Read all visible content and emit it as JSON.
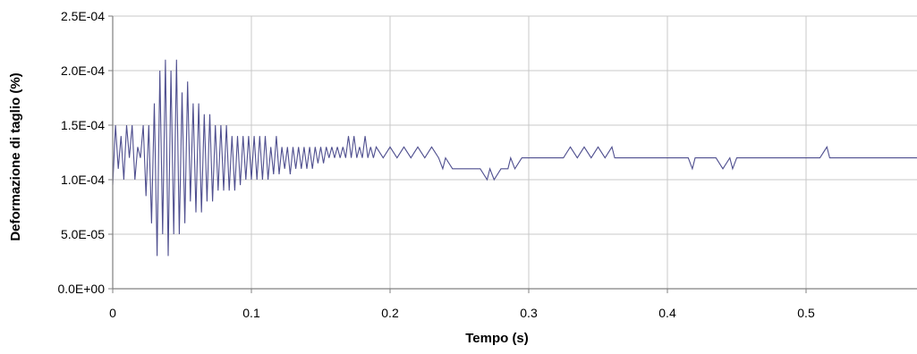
{
  "chart_data": {
    "type": "line",
    "title": "",
    "xlabel": "Tempo (s)",
    "ylabel": "Deformazione di taglio (%)",
    "xlim": [
      0,
      0.58
    ],
    "ylim": [
      0,
      0.00025
    ],
    "grid": true,
    "legend": "none",
    "x_ticks": [
      {
        "value": 0,
        "label": "0"
      },
      {
        "value": 0.1,
        "label": "0.1"
      },
      {
        "value": 0.2,
        "label": "0.2"
      },
      {
        "value": 0.3,
        "label": "0.3"
      },
      {
        "value": 0.4,
        "label": "0.4"
      },
      {
        "value": 0.5,
        "label": "0.5"
      }
    ],
    "y_ticks": [
      {
        "value": 0,
        "label": "0.0E+00"
      },
      {
        "value": 5e-05,
        "label": "5.0E-05"
      },
      {
        "value": 0.0001,
        "label": "1.0E-04"
      },
      {
        "value": 0.00015,
        "label": "1.5E-04"
      },
      {
        "value": 0.0002,
        "label": "2.0E-04"
      },
      {
        "value": 0.00025,
        "label": "2.5E-04"
      }
    ],
    "series_color": "#4f4f8f",
    "series": [
      {
        "x": [
          0.0,
          0.002,
          0.004,
          0.006,
          0.008,
          0.01,
          0.012,
          0.014,
          0.016,
          0.018,
          0.02,
          0.022,
          0.024,
          0.026,
          0.028,
          0.03,
          0.032,
          0.034,
          0.036,
          0.038,
          0.04,
          0.042,
          0.044,
          0.046,
          0.048,
          0.05,
          0.052,
          0.054,
          0.056,
          0.058,
          0.06,
          0.062,
          0.064,
          0.066,
          0.068,
          0.07,
          0.072,
          0.074,
          0.076,
          0.078,
          0.08,
          0.082,
          0.084,
          0.086,
          0.088,
          0.09,
          0.092,
          0.094,
          0.096,
          0.098,
          0.1,
          0.102,
          0.104,
          0.106,
          0.108,
          0.11,
          0.112,
          0.114,
          0.116,
          0.118,
          0.12,
          0.122,
          0.124,
          0.126,
          0.128,
          0.13,
          0.132,
          0.134,
          0.136,
          0.138,
          0.14,
          0.142,
          0.144,
          0.146,
          0.148,
          0.15,
          0.152,
          0.154,
          0.156,
          0.158,
          0.16,
          0.162,
          0.164,
          0.166,
          0.168,
          0.17,
          0.172,
          0.174,
          0.176,
          0.178,
          0.18,
          0.182,
          0.184,
          0.186,
          0.188,
          0.19,
          0.195,
          0.2,
          0.205,
          0.21,
          0.215,
          0.22,
          0.225,
          0.23,
          0.235,
          0.238,
          0.24,
          0.245,
          0.25,
          0.255,
          0.26,
          0.265,
          0.27,
          0.272,
          0.275,
          0.28,
          0.285,
          0.287,
          0.29,
          0.295,
          0.3,
          0.305,
          0.31,
          0.315,
          0.32,
          0.325,
          0.33,
          0.335,
          0.34,
          0.345,
          0.35,
          0.355,
          0.36,
          0.362,
          0.37,
          0.38,
          0.39,
          0.4,
          0.41,
          0.415,
          0.418,
          0.42,
          0.425,
          0.43,
          0.435,
          0.44,
          0.445,
          0.447,
          0.45,
          0.46,
          0.47,
          0.48,
          0.49,
          0.5,
          0.51,
          0.515,
          0.517,
          0.52,
          0.53,
          0.54,
          0.55,
          0.56,
          0.57,
          0.58
        ],
        "y": [
          9.5e-05,
          0.00015,
          0.00011,
          0.00014,
          0.0001,
          0.00015,
          0.00012,
          0.00015,
          0.0001,
          0.00013,
          0.00012,
          0.00015,
          8.5e-05,
          0.00015,
          6e-05,
          0.00017,
          3e-05,
          0.0002,
          5e-05,
          0.00021,
          3e-05,
          0.0002,
          5e-05,
          0.00021,
          5e-05,
          0.00018,
          6e-05,
          0.00019,
          8e-05,
          0.00017,
          7e-05,
          0.00017,
          7e-05,
          0.00016,
          8e-05,
          0.00016,
          8e-05,
          0.00015,
          9e-05,
          0.00015,
          9e-05,
          0.00015,
          9e-05,
          0.00014,
          9e-05,
          0.00014,
          9.5e-05,
          0.00014,
          0.0001,
          0.00014,
          0.0001,
          0.00014,
          0.0001,
          0.00014,
          0.0001,
          0.00014,
          0.0001,
          0.00013,
          0.000105,
          0.00014,
          0.000105,
          0.00013,
          0.00011,
          0.00013,
          0.000105,
          0.00013,
          0.00011,
          0.00013,
          0.00011,
          0.00013,
          0.00011,
          0.00013,
          0.00011,
          0.00013,
          0.000115,
          0.00013,
          0.000115,
          0.00013,
          0.00012,
          0.00013,
          0.00012,
          0.00013,
          0.00012,
          0.00013,
          0.00012,
          0.00014,
          0.00012,
          0.00014,
          0.00012,
          0.00013,
          0.00012,
          0.00014,
          0.00012,
          0.00013,
          0.00012,
          0.00013,
          0.00012,
          0.00013,
          0.00012,
          0.00013,
          0.00012,
          0.00013,
          0.00012,
          0.00013,
          0.00012,
          0.00011,
          0.00012,
          0.00011,
          0.00011,
          0.00011,
          0.00011,
          0.00011,
          0.0001,
          0.00011,
          0.0001,
          0.00011,
          0.00011,
          0.00012,
          0.00011,
          0.00012,
          0.00012,
          0.00012,
          0.00012,
          0.00012,
          0.00012,
          0.00012,
          0.00013,
          0.00012,
          0.00013,
          0.00012,
          0.00013,
          0.00012,
          0.00013,
          0.00012,
          0.00012,
          0.00012,
          0.00012,
          0.00012,
          0.00012,
          0.00012,
          0.00011,
          0.00012,
          0.00012,
          0.00012,
          0.00012,
          0.00011,
          0.00012,
          0.00011,
          0.00012,
          0.00012,
          0.00012,
          0.00012,
          0.00012,
          0.00012,
          0.00012,
          0.00013,
          0.00012,
          0.00012,
          0.00012,
          0.00012,
          0.00012,
          0.00012,
          0.00012,
          0.00012
        ]
      }
    ]
  }
}
